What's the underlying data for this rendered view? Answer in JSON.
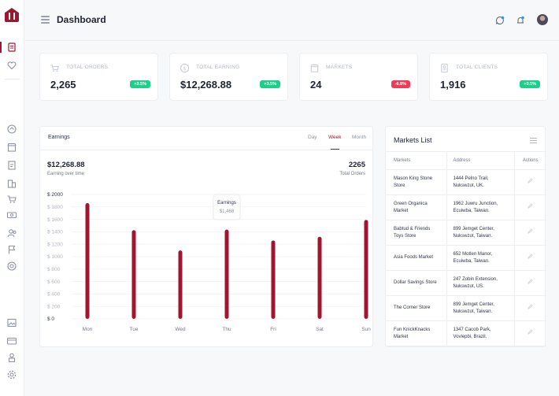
{
  "header": {
    "title": "Dashboard"
  },
  "stats": [
    {
      "label": "TOTAL ORDERS",
      "value": "2,265",
      "badge": "+3.5%",
      "trend": "up",
      "icon": "cart-icon"
    },
    {
      "label": "TOTAL EARNING",
      "value": "$12,268.88",
      "badge": "+3.5%",
      "trend": "up",
      "icon": "dollar-icon"
    },
    {
      "label": "MARKETS",
      "value": "24",
      "badge": "-6.8%",
      "trend": "down",
      "icon": "store-icon"
    },
    {
      "label": "TOTAL CLIENTS",
      "value": "1,916",
      "badge": "+3.5%",
      "trend": "up",
      "icon": "clients-icon"
    }
  ],
  "earnings": {
    "title": "Earnings",
    "tabs": [
      "Day",
      "Week",
      "Month"
    ],
    "active_tab": "Week",
    "total": "$12,268.88",
    "total_label": "Earning over time",
    "orders": "2265",
    "orders_label": "Total Orders",
    "tooltip": {
      "title": "Earnings",
      "value": "$1,468"
    }
  },
  "chart_data": {
    "type": "bar",
    "categories": [
      "Mon",
      "Tue",
      "Wed",
      "Thu",
      "Fri",
      "Sat",
      "Sun"
    ],
    "values": [
      1860,
      1425,
      1100,
      1435,
      1260,
      1320,
      1590
    ],
    "y_ticks": [
      "$ 2000",
      "$ 1800",
      "$ 1600",
      "$ 1400",
      "$ 1200",
      "$ 1000",
      "$ 800",
      "$ 600",
      "$ 400",
      "$ 200",
      "$ 0"
    ],
    "ylim": [
      0,
      2000
    ],
    "bar_color": "#a0152f",
    "grid": true
  },
  "markets": {
    "title": "Markets List",
    "columns": [
      "Markets",
      "Address",
      "Actions"
    ],
    "rows": [
      {
        "name": [
          "Mason King Stone",
          "Store"
        ],
        "address": [
          "1444 Pelno Trail,",
          "Nukswzot, UK."
        ]
      },
      {
        "name": [
          "Green Organica",
          "Market"
        ],
        "address": [
          "1962 Juwru Junction,",
          "Ecuiwba, Taiwan."
        ]
      },
      {
        "name": [
          "Babtud & Friends",
          "Toys Store"
        ],
        "address": [
          "899 Jemget Center,",
          "Nukswzot, Taiwan."
        ]
      },
      {
        "name": [
          "Asia Foods Market",
          ""
        ],
        "address": [
          "652 Motlen Manor,",
          "Ecuiwba, Taiwan."
        ]
      },
      {
        "name": [
          "Dollar Savings Store",
          ""
        ],
        "address": [
          "247 Zobin Extension,",
          "Nukswzot, US."
        ]
      },
      {
        "name": [
          "The Corner Store",
          ""
        ],
        "address": [
          "899 Jemget Center,",
          "Nukswzot, Taiwan."
        ]
      },
      {
        "name": [
          "Fun KnickKnacks",
          "Market"
        ],
        "address": [
          "1347 Cacob Park,",
          "Vovlepbi, Brazil."
        ]
      }
    ]
  },
  "colors": {
    "accent": "#a0152f",
    "positive": "#1ccf8a",
    "negative": "#ef3b57"
  }
}
